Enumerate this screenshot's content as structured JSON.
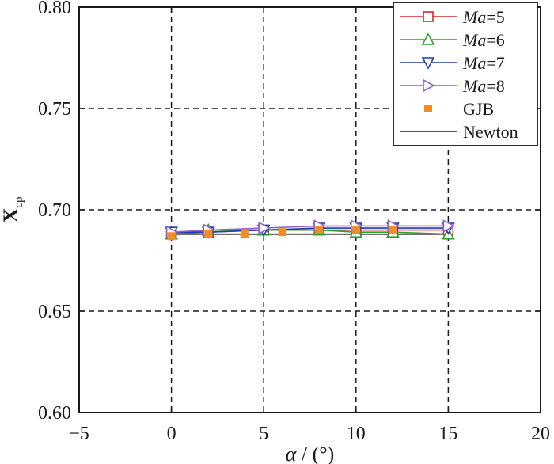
{
  "chart_data": {
    "type": "line",
    "xlabel_symbol": "α",
    "xlabel_unit": " / (°)",
    "ylabel_main": "X",
    "ylabel_sub": "cp",
    "xlim": [
      -5,
      20
    ],
    "ylim": [
      0.6,
      0.8
    ],
    "xticks": [
      -5,
      0,
      5,
      10,
      15,
      20
    ],
    "yticks": [
      0.6,
      0.65,
      0.7,
      0.75,
      0.8
    ],
    "xtick_labels": [
      "−5",
      "0",
      "5",
      "10",
      "15",
      "20"
    ],
    "ytick_labels": [
      "0.60",
      "0.65",
      "0.70",
      "0.75",
      "0.80"
    ],
    "grid": true,
    "legend_position": "top-right",
    "series": [
      {
        "name_italic": "Ma",
        "name_rest": "=5",
        "color": "#d62728",
        "marker": "square",
        "x": [
          0,
          2,
          5,
          8,
          10,
          12,
          15
        ],
        "y": [
          0.688,
          0.689,
          0.69,
          0.69,
          0.69,
          0.69,
          0.69
        ]
      },
      {
        "name_italic": "Ma",
        "name_rest": "=6",
        "color": "#2ca02c",
        "marker": "triangle-up",
        "x": [
          0,
          2,
          5,
          8,
          10,
          12,
          15
        ],
        "y": [
          0.688,
          0.69,
          0.69,
          0.69,
          0.689,
          0.689,
          0.688
        ]
      },
      {
        "name_italic": "Ma",
        "name_rest": "=7",
        "color": "#1f3ea8",
        "marker": "triangle-down",
        "x": [
          0,
          2,
          5,
          8,
          10,
          12,
          15
        ],
        "y": [
          0.689,
          0.689,
          0.69,
          0.691,
          0.691,
          0.691,
          0.691
        ]
      },
      {
        "name_italic": "Ma",
        "name_rest": "=8",
        "color": "#8e63c9",
        "marker": "triangle-right",
        "x": [
          0,
          2,
          5,
          8,
          10,
          12,
          15
        ],
        "y": [
          0.689,
          0.69,
          0.691,
          0.692,
          0.692,
          0.692,
          0.692
        ]
      },
      {
        "name_italic": "",
        "name_rest": "GJB",
        "color": "#f08c2a",
        "marker": "filled-square",
        "x": [
          0,
          2,
          4,
          6,
          8,
          10,
          12
        ],
        "y": [
          0.687,
          0.688,
          0.688,
          0.689,
          0.69,
          0.69,
          0.69
        ]
      },
      {
        "name_italic": "",
        "name_rest": "Newton",
        "color": "#1a1a1a",
        "marker": "none",
        "x": [
          0,
          15
        ],
        "y": [
          0.688,
          0.688
        ]
      }
    ]
  }
}
